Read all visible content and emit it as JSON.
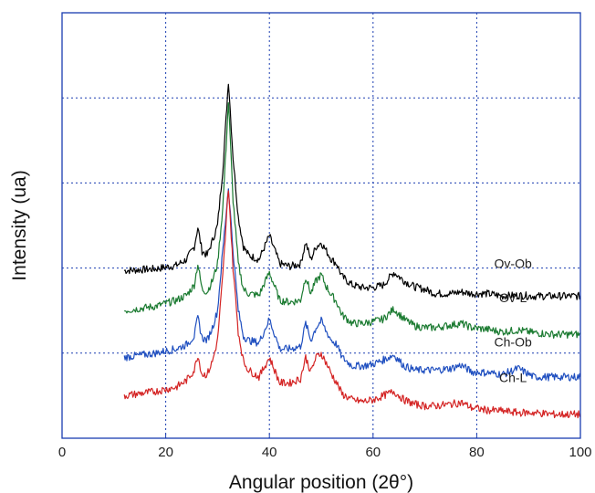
{
  "chart_data": {
    "type": "line",
    "title": "",
    "xlabel": "Angular position (2θ°)",
    "ylabel": "Intensity (ua)",
    "xlim": [
      0,
      100
    ],
    "ylim": [
      0,
      5
    ],
    "x_ticks": [
      "0",
      "20",
      "40",
      "60",
      "80",
      "100"
    ],
    "y_ticks_labeled": false,
    "grid": true,
    "legend": "inline labels at right",
    "series": [
      {
        "name": "Ov-Ob",
        "label": "Ov-Ob",
        "color": "#000000",
        "x": [
          12,
          18,
          22,
          24,
          25.5,
          26.2,
          27,
          28,
          29,
          30,
          31,
          32.1,
          33,
          34,
          35,
          36,
          38,
          40,
          42,
          44,
          46,
          47,
          48,
          49,
          50,
          51,
          52,
          53,
          54,
          56,
          58,
          60,
          62,
          64,
          66,
          68,
          70,
          72,
          75,
          77,
          79,
          82,
          85,
          88,
          91,
          95,
          100
        ],
        "values": [
          1.97,
          1.99,
          2.03,
          2.1,
          2.25,
          2.48,
          2.2,
          2.15,
          2.32,
          2.5,
          3.15,
          4.2,
          3.3,
          2.6,
          2.25,
          2.15,
          2.1,
          2.38,
          2.05,
          2.02,
          2.05,
          2.3,
          2.1,
          2.25,
          2.3,
          2.2,
          2.1,
          2.05,
          1.9,
          1.8,
          1.77,
          1.77,
          1.8,
          1.95,
          1.85,
          1.78,
          1.75,
          1.7,
          1.7,
          1.72,
          1.7,
          1.7,
          1.67,
          1.68,
          1.67,
          1.67,
          1.67
        ]
      },
      {
        "name": "Ov-L",
        "label": "Ov-L",
        "color": "#1a7a30",
        "x": [
          12,
          18,
          22,
          24,
          25.5,
          26.2,
          27,
          28,
          29,
          30,
          31,
          32.1,
          33,
          34,
          35,
          36,
          38,
          40,
          42,
          44,
          46,
          47,
          48,
          49,
          50,
          51,
          52,
          53,
          54,
          56,
          58,
          60,
          62,
          64,
          66,
          68,
          70,
          72,
          75,
          77,
          79,
          82,
          85,
          88,
          91,
          95,
          100
        ],
        "values": [
          1.5,
          1.55,
          1.62,
          1.68,
          1.8,
          2.05,
          1.75,
          1.72,
          1.85,
          2.05,
          2.7,
          3.95,
          2.8,
          2.05,
          1.75,
          1.7,
          1.68,
          1.95,
          1.62,
          1.6,
          1.62,
          1.9,
          1.7,
          1.85,
          1.92,
          1.78,
          1.68,
          1.6,
          1.45,
          1.35,
          1.35,
          1.37,
          1.4,
          1.52,
          1.4,
          1.32,
          1.3,
          1.3,
          1.33,
          1.35,
          1.3,
          1.28,
          1.25,
          1.27,
          1.24,
          1.22,
          1.22
        ]
      },
      {
        "name": "Ch-Ob",
        "label": "Ch-Ob",
        "color": "#1f4fc0",
        "x": [
          12,
          18,
          22,
          24,
          25.5,
          26.2,
          27,
          28,
          29,
          30,
          31,
          32.1,
          33,
          34,
          35,
          36,
          38,
          40,
          42,
          44,
          46,
          47,
          48,
          49,
          50,
          51,
          52,
          53,
          54,
          56,
          58,
          60,
          62,
          64,
          66,
          68,
          70,
          72,
          75,
          77,
          79,
          82,
          85,
          88,
          91,
          95,
          100
        ],
        "values": [
          0.95,
          1.0,
          1.05,
          1.1,
          1.2,
          1.42,
          1.18,
          1.15,
          1.3,
          1.5,
          2.2,
          2.95,
          2.2,
          1.5,
          1.2,
          1.15,
          1.12,
          1.4,
          1.05,
          1.05,
          1.08,
          1.35,
          1.15,
          1.3,
          1.38,
          1.25,
          1.15,
          1.1,
          0.95,
          0.85,
          0.85,
          0.87,
          0.92,
          0.98,
          0.85,
          0.8,
          0.8,
          0.8,
          0.82,
          0.86,
          0.78,
          0.77,
          0.75,
          0.82,
          0.72,
          0.72,
          0.72
        ]
      },
      {
        "name": "Ch-L",
        "label": "Ch-L",
        "color": "#d42424",
        "x": [
          12,
          18,
          22,
          24,
          25.5,
          26.2,
          27,
          28,
          29,
          30,
          31,
          32.1,
          33,
          34,
          35,
          36,
          38,
          40,
          42,
          44,
          46,
          47,
          48,
          49,
          50,
          51,
          52,
          53,
          54,
          56,
          58,
          60,
          62,
          64,
          66,
          68,
          70,
          72,
          75,
          77,
          79,
          82,
          85,
          88,
          91,
          95,
          100
        ],
        "values": [
          0.5,
          0.55,
          0.6,
          0.68,
          0.8,
          0.98,
          0.75,
          0.75,
          0.9,
          1.15,
          1.9,
          2.95,
          2.0,
          1.25,
          0.9,
          0.8,
          0.72,
          0.95,
          0.65,
          0.65,
          0.7,
          0.95,
          0.78,
          0.95,
          1.0,
          0.88,
          0.75,
          0.65,
          0.52,
          0.45,
          0.43,
          0.45,
          0.5,
          0.55,
          0.45,
          0.4,
          0.38,
          0.38,
          0.4,
          0.42,
          0.36,
          0.33,
          0.32,
          0.3,
          0.3,
          0.28,
          0.28
        ]
      }
    ]
  }
}
